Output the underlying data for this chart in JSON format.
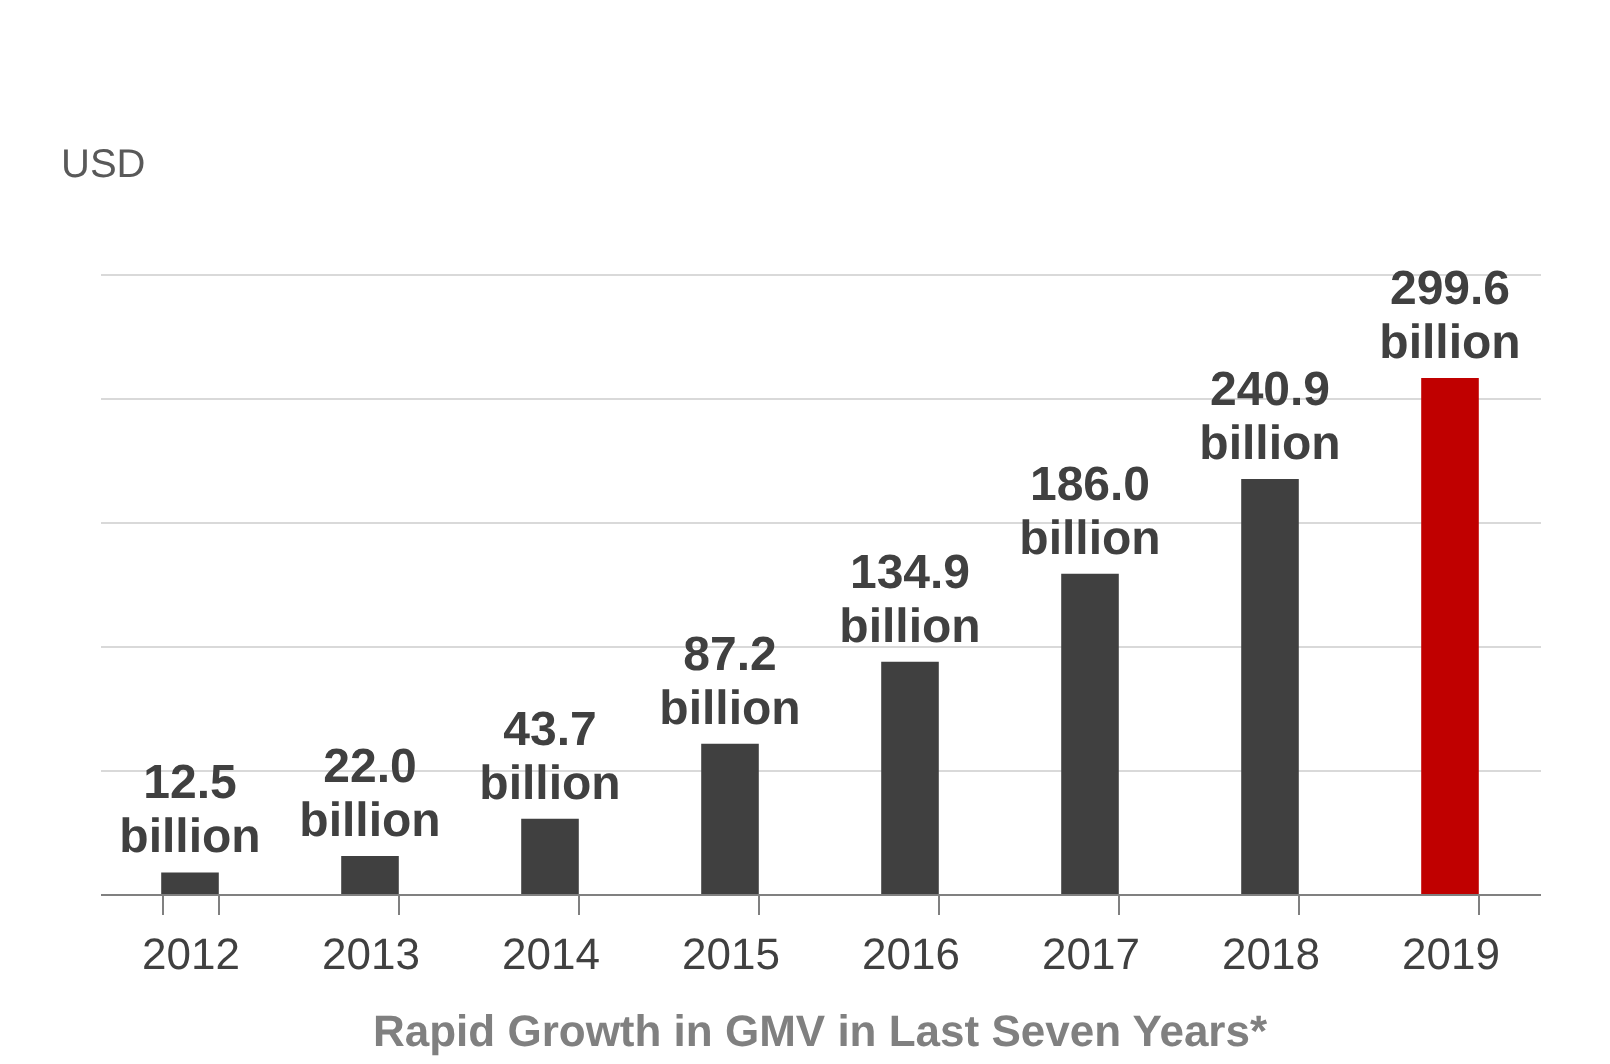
{
  "chart_data": {
    "type": "bar",
    "title": "Rapid Growth in GMV in Last Seven Years*",
    "ylabel": "USD",
    "categories": [
      "2012",
      "2013",
      "2014",
      "2015",
      "2016",
      "2017",
      "2018",
      "2019"
    ],
    "values": [
      12.5,
      22.0,
      43.7,
      87.2,
      134.9,
      186.0,
      240.9,
      299.6
    ],
    "colors": [
      "#404040",
      "#404040",
      "#404040",
      "#404040",
      "#404040",
      "#404040",
      "#404040",
      "#c00000"
    ],
    "value_labels": [
      "12.5 billion",
      "22.0 billion",
      "43.7 billion",
      "87.2 billion",
      "134.9 billion",
      "186.0 billion",
      "240.9 billion",
      "299.6 billion"
    ],
    "ylim": [
      0,
      360
    ],
    "yticks": [
      {
        "value": 0,
        "label": null
      },
      {
        "value": 72,
        "label": null
      },
      {
        "value": 144,
        "label": null
      },
      {
        "value": 216,
        "label": null
      },
      {
        "value": 288,
        "label": null
      },
      {
        "value": 360,
        "label": null
      }
    ],
    "grid": "y",
    "tick_labels": "x"
  }
}
